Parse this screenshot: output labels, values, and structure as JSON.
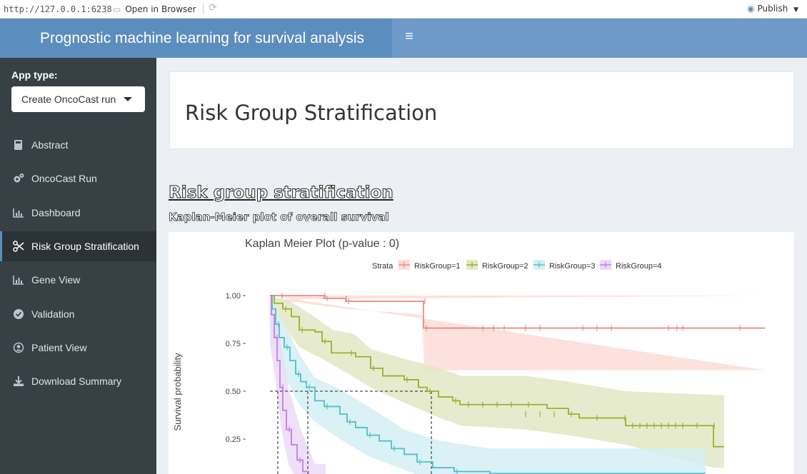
{
  "topbar": {
    "url": "http://127.0.0.1:6238",
    "open_in_browser": "Open in Browser",
    "publish": "Publish"
  },
  "header": {
    "title": "Prognostic machine learning for survival analysis"
  },
  "sidebar": {
    "app_type_label": "App type:",
    "app_type_value": "Create OncoCast run",
    "items": [
      {
        "label": "Abstract",
        "icon": "book-icon"
      },
      {
        "label": "OncoCast Run",
        "icon": "gears-icon"
      },
      {
        "label": "Dashboard",
        "icon": "bar-chart-icon"
      },
      {
        "label": "Risk Group Stratification",
        "icon": "scissors-icon",
        "active": true
      },
      {
        "label": "Gene View",
        "icon": "bar-chart-icon"
      },
      {
        "label": "Validation",
        "icon": "check-circle-icon"
      },
      {
        "label": "Patient View",
        "icon": "user-circle-icon"
      },
      {
        "label": "Download Summary",
        "icon": "download-icon"
      }
    ]
  },
  "main": {
    "box_title": "Risk Group Stratification",
    "section_title": "Risk group stratification",
    "subsection_title": "Kaplan-Meier plot of overall survival"
  },
  "chart_data": {
    "type": "line",
    "title": "Kaplan Meier Plot (p-value : 0)",
    "ylabel": "Survival probability",
    "ylim": [
      0,
      1
    ],
    "yticks": [
      "1.00",
      "0.75",
      "0.50",
      "0.25"
    ],
    "legend_title": "Strata",
    "legend_placement": "top",
    "series": [
      {
        "name": "RiskGroup=1",
        "color": "#e88d82",
        "fill": "#fbdcd7"
      },
      {
        "name": "RiskGroup=2",
        "color": "#9aaf2f",
        "fill": "#e3e7c4"
      },
      {
        "name": "RiskGroup=3",
        "color": "#4fc0cc",
        "fill": "#d3eff3"
      },
      {
        "name": "RiskGroup=4",
        "color": "#c57ee8",
        "fill": "#ecd9f7"
      }
    ]
  }
}
